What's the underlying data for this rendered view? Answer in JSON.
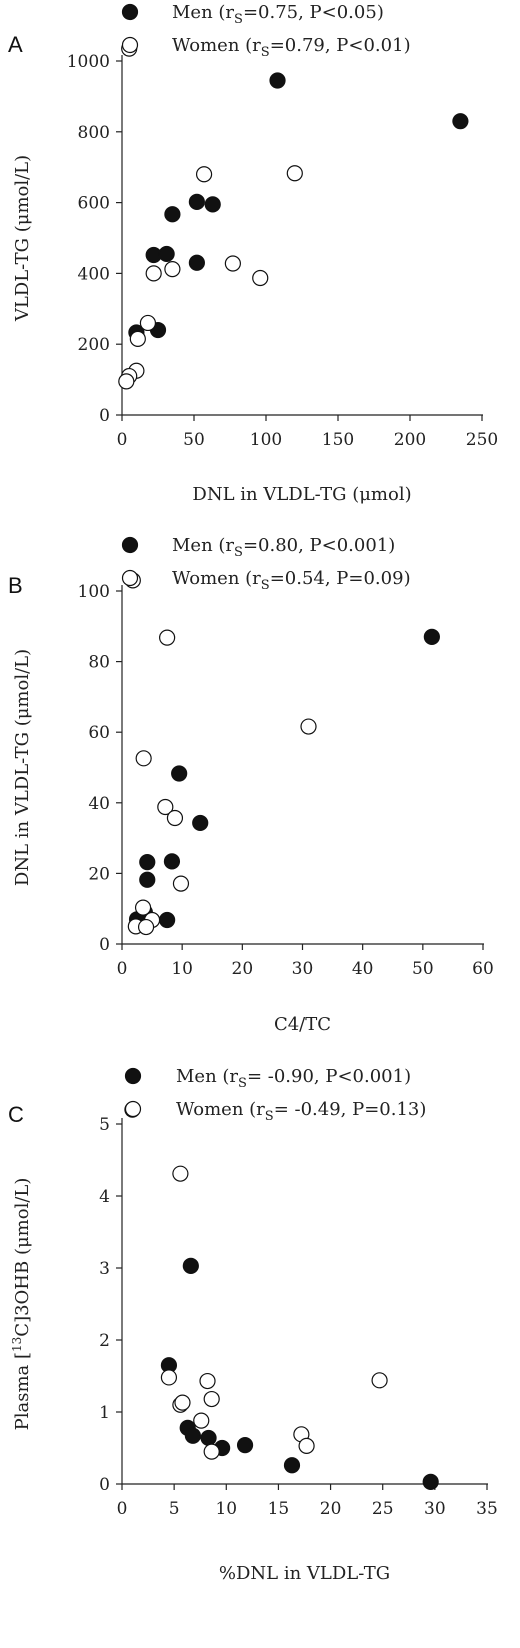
{
  "chart_data": [
    {
      "type": "scatter",
      "panel": "A",
      "xlabel": "DNL in VLDL-TG (μmol)",
      "ylabel": "VLDL-TG (μmol/L)",
      "xlim": [
        0,
        250
      ],
      "ylim": [
        0,
        1000
      ],
      "xticks": [
        0,
        50,
        100,
        150,
        200,
        250
      ],
      "yticks": [
        0,
        200,
        400,
        600,
        800,
        1000
      ],
      "series": [
        {
          "name": "Men",
          "legend": {
            "prefix": "Men (r",
            "sub": "S",
            "suffix": "=0.75, P<0.05)"
          },
          "fill": "#111111",
          "points": [
            [
              108,
              945
            ],
            [
              235,
              830
            ],
            [
              35,
              567
            ],
            [
              52,
              602
            ],
            [
              63,
              595
            ],
            [
              22,
              452
            ],
            [
              31,
              455
            ],
            [
              52,
              430
            ],
            [
              10,
              233
            ],
            [
              25,
              240
            ]
          ]
        },
        {
          "name": "Women",
          "legend": {
            "prefix": "Women (r",
            "sub": "S",
            "suffix": "=0.79, P<0.01)"
          },
          "fill": "#ffffff",
          "points": [
            [
              5,
              1035
            ],
            [
              57,
              680
            ],
            [
              120,
              683
            ],
            [
              22,
              400
            ],
            [
              35,
              412
            ],
            [
              77,
              428
            ],
            [
              96,
              387
            ],
            [
              18,
              260
            ],
            [
              11,
              215
            ],
            [
              10,
              125
            ],
            [
              5,
              110
            ],
            [
              3,
              95
            ]
          ]
        }
      ]
    },
    {
      "type": "scatter",
      "panel": "B",
      "xlabel": "C4/TC",
      "ylabel": "DNL in VLDL-TG (μmol/L)",
      "xlim": [
        0,
        60
      ],
      "ylim": [
        0,
        100
      ],
      "xticks": [
        0,
        10,
        20,
        30,
        40,
        50,
        60
      ],
      "yticks": [
        0,
        20,
        40,
        60,
        80,
        100
      ],
      "series": [
        {
          "name": "Men",
          "legend": {
            "prefix": "Men (r",
            "sub": "S",
            "suffix": "=0.80, P<0.001)"
          },
          "fill": "#111111",
          "points": [
            [
              51.5,
              87
            ],
            [
              9.5,
              48.3
            ],
            [
              13,
              34.3
            ],
            [
              4.2,
              23.2
            ],
            [
              8.3,
              23.4
            ],
            [
              4.2,
              18.2
            ],
            [
              3.8,
              9
            ],
            [
              2.5,
              7
            ],
            [
              7.5,
              6.8
            ]
          ]
        },
        {
          "name": "Women",
          "legend": {
            "prefix": "Women (r",
            "sub": "S",
            "suffix": "=0.54, P=0.09)"
          },
          "fill": "#ffffff",
          "points": [
            [
              1.8,
              103
            ],
            [
              7.5,
              86.8
            ],
            [
              31,
              61.6
            ],
            [
              3.6,
              52.6
            ],
            [
              7.2,
              38.8
            ],
            [
              8.8,
              35.7
            ],
            [
              9.8,
              17.1
            ],
            [
              3.5,
              10.3
            ],
            [
              5,
              6.8
            ],
            [
              2.3,
              5
            ],
            [
              4,
              4.8
            ]
          ]
        }
      ]
    },
    {
      "type": "scatter",
      "panel": "C",
      "xlabel": "%DNL in VLDL-TG",
      "ylabel": "Plasma [13C]3OHB (μmol/L)",
      "xlim": [
        0,
        35
      ],
      "ylim": [
        0,
        5
      ],
      "xticks": [
        0,
        5,
        10,
        15,
        20,
        25,
        30,
        35
      ],
      "yticks": [
        0,
        1,
        2,
        3,
        4,
        5
      ],
      "series": [
        {
          "name": "Men",
          "legend": {
            "prefix": "Men (r",
            "sub": "S",
            "suffix": "= -0.90, P<0.001)"
          },
          "fill": "#111111",
          "points": [
            [
              6.6,
              3.03
            ],
            [
              4.5,
              1.65
            ],
            [
              6.3,
              0.78
            ],
            [
              6.8,
              0.67
            ],
            [
              8.3,
              0.64
            ],
            [
              9.6,
              0.5
            ],
            [
              11.8,
              0.54
            ],
            [
              16.3,
              0.26
            ],
            [
              29.6,
              0.03
            ]
          ]
        },
        {
          "name": "Women",
          "legend": {
            "prefix": "Women (r",
            "sub": "S",
            "suffix": "= -0.49, P=0.13)"
          },
          "fill": "#ffffff",
          "points": [
            [
              1,
              5.2
            ],
            [
              5.6,
              4.31
            ],
            [
              4.5,
              1.48
            ],
            [
              5.6,
              1.1
            ],
            [
              5.8,
              1.13
            ],
            [
              7.6,
              0.88
            ],
            [
              8.2,
              1.43
            ],
            [
              8.6,
              1.18
            ],
            [
              8.6,
              0.45
            ],
            [
              17.2,
              0.69
            ],
            [
              17.7,
              0.53
            ],
            [
              24.7,
              1.44
            ]
          ]
        }
      ]
    }
  ]
}
